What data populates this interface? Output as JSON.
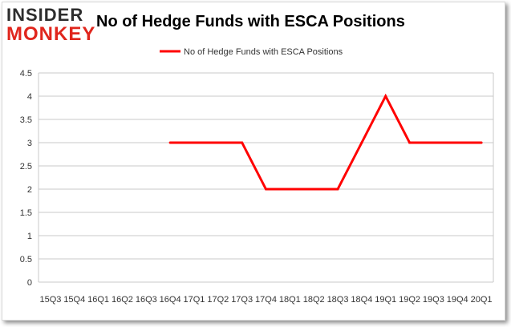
{
  "logo": {
    "line1": "INSIDER",
    "line2": "MONKEY"
  },
  "chart_data": {
    "type": "line",
    "title": "No of Hedge Funds with ESCA Positions",
    "xlabel": "",
    "ylabel": "",
    "categories": [
      "15Q3",
      "15Q4",
      "16Q1",
      "16Q2",
      "16Q3",
      "16Q4",
      "17Q1",
      "17Q2",
      "17Q3",
      "17Q4",
      "18Q1",
      "18Q2",
      "18Q3",
      "18Q4",
      "19Q1",
      "19Q2",
      "19Q3",
      "19Q4",
      "20Q1"
    ],
    "series": [
      {
        "name": "No of Hedge Funds with ESCA Positions",
        "color": "#ff0000",
        "values": [
          null,
          null,
          null,
          null,
          null,
          3,
          3,
          3,
          3,
          2,
          2,
          2,
          2,
          3,
          4,
          3,
          3,
          3,
          3
        ]
      }
    ],
    "ylim": [
      0,
      4.5
    ],
    "yticks": [
      "0",
      "0.5",
      "1",
      "1.5",
      "2",
      "2.5",
      "3",
      "3.5",
      "4",
      "4.5"
    ],
    "grid": true,
    "legend": "top-center"
  }
}
